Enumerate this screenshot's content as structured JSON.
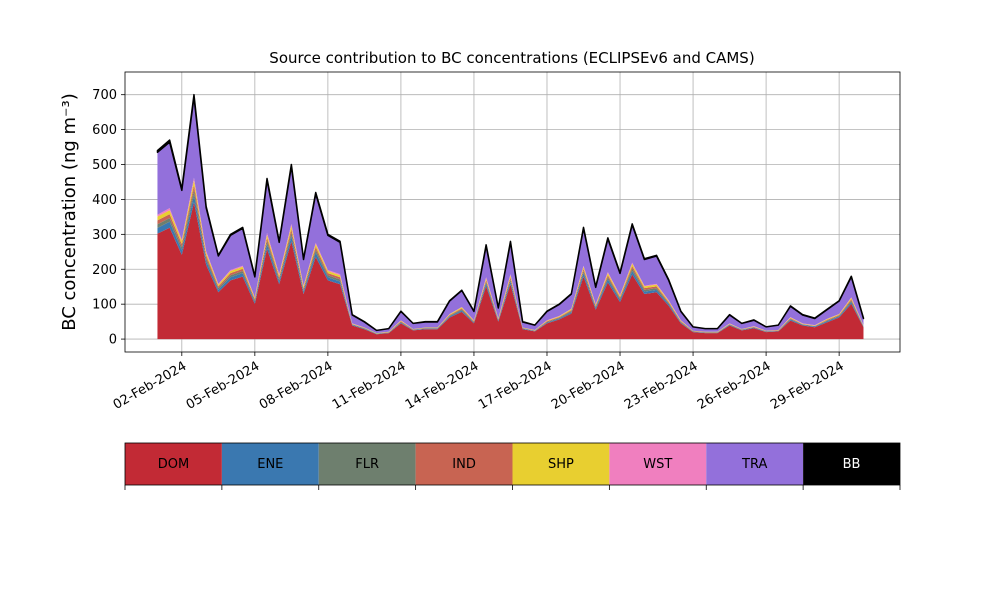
{
  "chart_data": {
    "type": "stacked_area",
    "title": "Source contribution to BC concentrations (ECLIPSEv6 and CAMS)",
    "y_label": "BC concentration (ng m⁻³)",
    "x": [
      "2024-02-01 00:00",
      "2024-02-01 12:00",
      "2024-02-02 00:00",
      "2024-02-02 12:00",
      "2024-02-03 00:00",
      "2024-02-03 12:00",
      "2024-02-04 00:00",
      "2024-02-04 12:00",
      "2024-02-05 00:00",
      "2024-02-05 12:00",
      "2024-02-06 00:00",
      "2024-02-06 12:00",
      "2024-02-07 00:00",
      "2024-02-07 12:00",
      "2024-02-08 00:00",
      "2024-02-08 12:00",
      "2024-02-09 00:00",
      "2024-02-09 12:00",
      "2024-02-10 00:00",
      "2024-02-10 12:00",
      "2024-02-11 00:00",
      "2024-02-11 12:00",
      "2024-02-12 00:00",
      "2024-02-12 12:00",
      "2024-02-13 00:00",
      "2024-02-13 12:00",
      "2024-02-14 00:00",
      "2024-02-14 12:00",
      "2024-02-15 00:00",
      "2024-02-15 12:00",
      "2024-02-16 00:00",
      "2024-02-16 12:00",
      "2024-02-17 00:00",
      "2024-02-17 12:00",
      "2024-02-18 00:00",
      "2024-02-18 12:00",
      "2024-02-19 00:00",
      "2024-02-19 12:00",
      "2024-02-20 00:00",
      "2024-02-20 12:00",
      "2024-02-21 00:00",
      "2024-02-21 12:00",
      "2024-02-22 00:00",
      "2024-02-22 12:00",
      "2024-02-23 00:00",
      "2024-02-23 12:00",
      "2024-02-24 00:00",
      "2024-02-24 12:00",
      "2024-02-25 00:00",
      "2024-02-25 12:00",
      "2024-02-26 00:00",
      "2024-02-26 12:00",
      "2024-02-27 00:00",
      "2024-02-27 12:00",
      "2024-02-28 00:00",
      "2024-02-28 12:00",
      "2024-02-29 00:00",
      "2024-02-29 12:00",
      "2024-03-01 00:00"
    ],
    "series": [
      {
        "name": "DOM",
        "color": "#c22a35",
        "values": [
          302,
          319,
          241,
          392,
          213,
          134,
          168,
          179,
          101,
          258,
          157,
          280,
          129,
          235,
          168,
          157,
          39,
          28,
          14,
          17,
          45,
          25,
          28,
          28,
          62,
          78,
          45,
          151,
          50,
          157,
          28,
          22,
          45,
          56,
          73,
          179,
          84,
          162,
          106,
          185,
          129,
          134,
          95,
          45,
          20,
          17,
          17,
          39,
          25,
          31,
          20,
          22,
          53,
          39,
          34,
          48,
          62,
          101,
          34
        ]
      },
      {
        "name": "ENE",
        "color": "#3a78b0",
        "values": [
          16,
          17,
          13,
          21,
          11,
          7,
          9,
          10,
          5,
          14,
          8,
          15,
          7,
          13,
          9,
          8,
          2,
          2,
          1,
          1,
          2,
          1,
          2,
          2,
          3,
          4,
          2,
          8,
          3,
          8,
          2,
          1,
          2,
          3,
          4,
          10,
          5,
          9,
          6,
          10,
          7,
          7,
          5,
          2,
          1,
          1,
          1,
          2,
          1,
          2,
          1,
          1,
          3,
          2,
          2,
          3,
          3,
          5,
          2
        ]
      },
      {
        "name": "FLR",
        "color": "#6e7f6e",
        "values": [
          11,
          11,
          9,
          14,
          8,
          5,
          6,
          6,
          4,
          9,
          6,
          10,
          5,
          8,
          6,
          6,
          1,
          1,
          1,
          1,
          2,
          1,
          1,
          1,
          2,
          3,
          2,
          5,
          2,
          6,
          1,
          1,
          2,
          2,
          3,
          6,
          3,
          6,
          4,
          7,
          5,
          5,
          3,
          2,
          1,
          1,
          1,
          1,
          1,
          1,
          1,
          1,
          2,
          1,
          1,
          2,
          2,
          4,
          1
        ]
      },
      {
        "name": "IND",
        "color": "#c86452",
        "values": [
          11,
          11,
          9,
          14,
          8,
          5,
          6,
          6,
          4,
          9,
          6,
          10,
          5,
          8,
          6,
          6,
          1,
          1,
          0,
          1,
          2,
          1,
          1,
          1,
          2,
          3,
          2,
          5,
          2,
          6,
          1,
          1,
          2,
          2,
          3,
          6,
          3,
          6,
          4,
          7,
          5,
          5,
          3,
          2,
          1,
          1,
          1,
          1,
          1,
          1,
          1,
          1,
          2,
          1,
          1,
          2,
          2,
          4,
          1
        ]
      },
      {
        "name": "SHP",
        "color": "#e8cf30",
        "values": [
          11,
          11,
          9,
          14,
          8,
          5,
          6,
          6,
          4,
          9,
          6,
          10,
          5,
          8,
          6,
          6,
          1,
          1,
          1,
          1,
          2,
          1,
          1,
          1,
          2,
          3,
          2,
          5,
          2,
          6,
          1,
          1,
          2,
          2,
          3,
          6,
          3,
          6,
          4,
          7,
          5,
          5,
          3,
          2,
          1,
          1,
          1,
          1,
          1,
          1,
          1,
          1,
          2,
          1,
          1,
          2,
          2,
          4,
          1
        ]
      },
      {
        "name": "WST",
        "color": "#f07fbf",
        "values": [
          5,
          6,
          4,
          7,
          4,
          2,
          3,
          3,
          2,
          5,
          3,
          5,
          2,
          4,
          3,
          3,
          1,
          0,
          0,
          0,
          1,
          0,
          0,
          0,
          1,
          1,
          1,
          3,
          1,
          3,
          0,
          0,
          1,
          1,
          1,
          3,
          2,
          3,
          2,
          3,
          2,
          2,
          2,
          1,
          0,
          0,
          0,
          1,
          0,
          1,
          0,
          0,
          1,
          1,
          1,
          1,
          1,
          2,
          1
        ]
      },
      {
        "name": "TRA",
        "color": "#9370db",
        "values": [
          179,
          189,
          141,
          231,
          124,
          80,
          99,
          107,
          58,
          151,
          91,
          165,
          75,
          140,
          99,
          91,
          24,
          16,
          8,
          9,
          25,
          16,
          16,
          16,
          37,
          47,
          25,
          90,
          29,
          91,
          16,
          14,
          25,
          33,
          42,
          107,
          48,
          95,
          62,
          108,
          75,
          80,
          57,
          25,
          11,
          9,
          9,
          24,
          16,
          17,
          11,
          14,
          31,
          24,
          19,
          26,
          37,
          58,
          19
        ]
      },
      {
        "name": "BB",
        "color": "#000000",
        "values": [
          5,
          6,
          4,
          7,
          4,
          2,
          3,
          3,
          2,
          5,
          3,
          5,
          2,
          4,
          3,
          3,
          1,
          1,
          0,
          0,
          1,
          0,
          1,
          1,
          1,
          1,
          1,
          3,
          1,
          3,
          1,
          0,
          1,
          1,
          1,
          3,
          2,
          3,
          2,
          3,
          2,
          2,
          2,
          1,
          0,
          0,
          0,
          1,
          0,
          1,
          0,
          0,
          1,
          1,
          1,
          1,
          1,
          2,
          1
        ]
      }
    ],
    "xlim": [
      "2024-01-30 16:00",
      "2024-03-02 12:00"
    ],
    "xticks": [
      {
        "value": "2024-02-02",
        "label": "02-Feb-2024"
      },
      {
        "value": "2024-02-05",
        "label": "05-Feb-2024"
      },
      {
        "value": "2024-02-08",
        "label": "08-Feb-2024"
      },
      {
        "value": "2024-02-11",
        "label": "11-Feb-2024"
      },
      {
        "value": "2024-02-14",
        "label": "14-Feb-2024"
      },
      {
        "value": "2024-02-17",
        "label": "17-Feb-2024"
      },
      {
        "value": "2024-02-20",
        "label": "20-Feb-2024"
      },
      {
        "value": "2024-02-23",
        "label": "23-Feb-2024"
      },
      {
        "value": "2024-02-26",
        "label": "26-Feb-2024"
      },
      {
        "value": "2024-02-29",
        "label": "29-Feb-2024"
      }
    ],
    "ylim": [
      -37,
      765
    ],
    "yticks": [
      0,
      100,
      200,
      300,
      400,
      500,
      600,
      700
    ],
    "grid": true
  }
}
